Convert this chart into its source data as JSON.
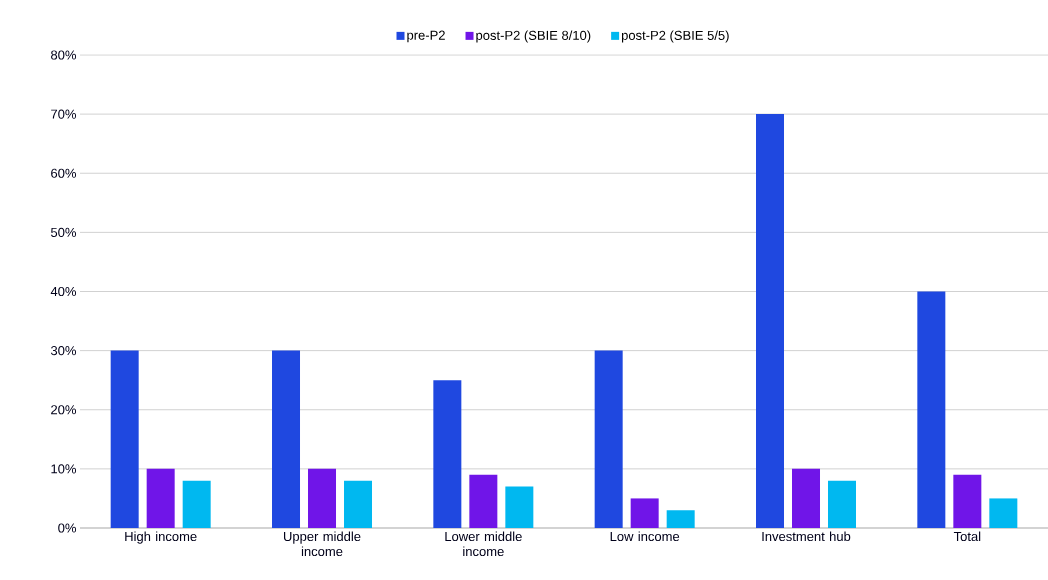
{
  "chart_data": {
    "type": "bar",
    "categories": [
      "High income",
      "Upper middle income",
      "Lower middle income",
      "Low income",
      "Investment hub",
      "Total"
    ],
    "series": [
      {
        "name": "pre-P2",
        "color": "#1f48e0",
        "values": [
          30,
          30,
          25,
          30,
          70,
          40
        ]
      },
      {
        "name": "post-P2 (SBIE 8/10)",
        "color": "#7015e8",
        "values": [
          10,
          10,
          9,
          5,
          10,
          9
        ]
      },
      {
        "name": "post-P2 (SBIE 5/5)",
        "color": "#00b8f0",
        "values": [
          8,
          8,
          7,
          3,
          8,
          5
        ]
      }
    ],
    "ylim": [
      0,
      80
    ],
    "yticks": [
      {
        "value": 0,
        "label": "0%"
      },
      {
        "value": 10,
        "label": "10%"
      },
      {
        "value": 20,
        "label": "20%"
      },
      {
        "value": 30,
        "label": "30%"
      },
      {
        "value": 40,
        "label": "40%"
      },
      {
        "value": 50,
        "label": "50%"
      },
      {
        "value": 60,
        "label": "60%"
      },
      {
        "value": 70,
        "label": "70%"
      },
      {
        "value": 80,
        "label": "80%"
      }
    ],
    "grid": "y",
    "legend": "top"
  }
}
